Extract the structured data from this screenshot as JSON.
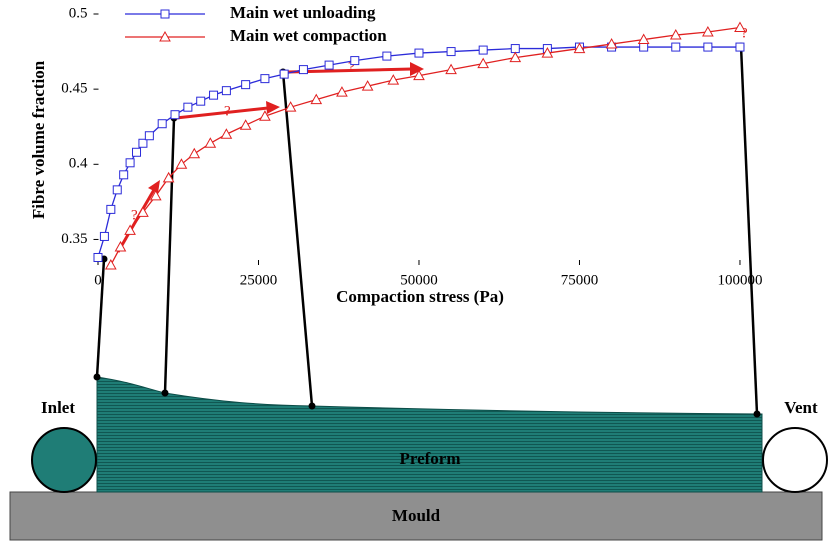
{
  "chart_data": {
    "type": "line",
    "xlabel": "Compaction stress (Pa)",
    "ylabel": "Fibre volume fraction",
    "xlim": [
      -700,
      101500
    ],
    "ylim": [
      0.333,
      0.5
    ],
    "xticks": [
      0,
      25000,
      50000,
      75000,
      100000
    ],
    "yticks": [
      0.35,
      0.4,
      0.45,
      0.5
    ],
    "legend": "upper left",
    "series": [
      {
        "name": "Main wet unloading",
        "color": "#2b2bd9",
        "marker": "square",
        "x": [
          0,
          1000,
          2000,
          3000,
          4000,
          5000,
          6000,
          7000,
          8000,
          10000,
          12000,
          14000,
          16000,
          18000,
          20000,
          23000,
          26000,
          29000,
          32000,
          36000,
          40000,
          45000,
          50000,
          55000,
          60000,
          65000,
          70000,
          75000,
          80000,
          85000,
          90000,
          95000,
          100000
        ],
        "values": [
          0.338,
          0.352,
          0.37,
          0.383,
          0.393,
          0.401,
          0.408,
          0.414,
          0.419,
          0.427,
          0.433,
          0.438,
          0.442,
          0.446,
          0.449,
          0.453,
          0.457,
          0.46,
          0.463,
          0.466,
          0.469,
          0.472,
          0.474,
          0.475,
          0.476,
          0.477,
          0.477,
          0.478,
          0.478,
          0.478,
          0.478,
          0.478,
          0.478
        ]
      },
      {
        "name": "Main wet compaction",
        "color": "#e02020",
        "marker": "triangle",
        "x": [
          2000,
          3500,
          5000,
          7000,
          9000,
          11000,
          13000,
          15000,
          17500,
          20000,
          23000,
          26000,
          30000,
          34000,
          38000,
          42000,
          46000,
          50000,
          55000,
          60000,
          65000,
          70000,
          75000,
          80000,
          85000,
          90000,
          95000,
          100000
        ],
        "values": [
          0.333,
          0.345,
          0.356,
          0.368,
          0.379,
          0.391,
          0.4,
          0.407,
          0.414,
          0.42,
          0.426,
          0.432,
          0.438,
          0.443,
          0.448,
          0.452,
          0.456,
          0.459,
          0.463,
          0.467,
          0.471,
          0.474,
          0.477,
          0.48,
          0.483,
          0.486,
          0.488,
          0.491
        ]
      }
    ],
    "annotations": [
      "?",
      "?",
      "?",
      "?"
    ]
  },
  "diagram": {
    "inlet": "Inlet",
    "vent": "Vent",
    "preform": "Preform",
    "mould": "Mould"
  }
}
